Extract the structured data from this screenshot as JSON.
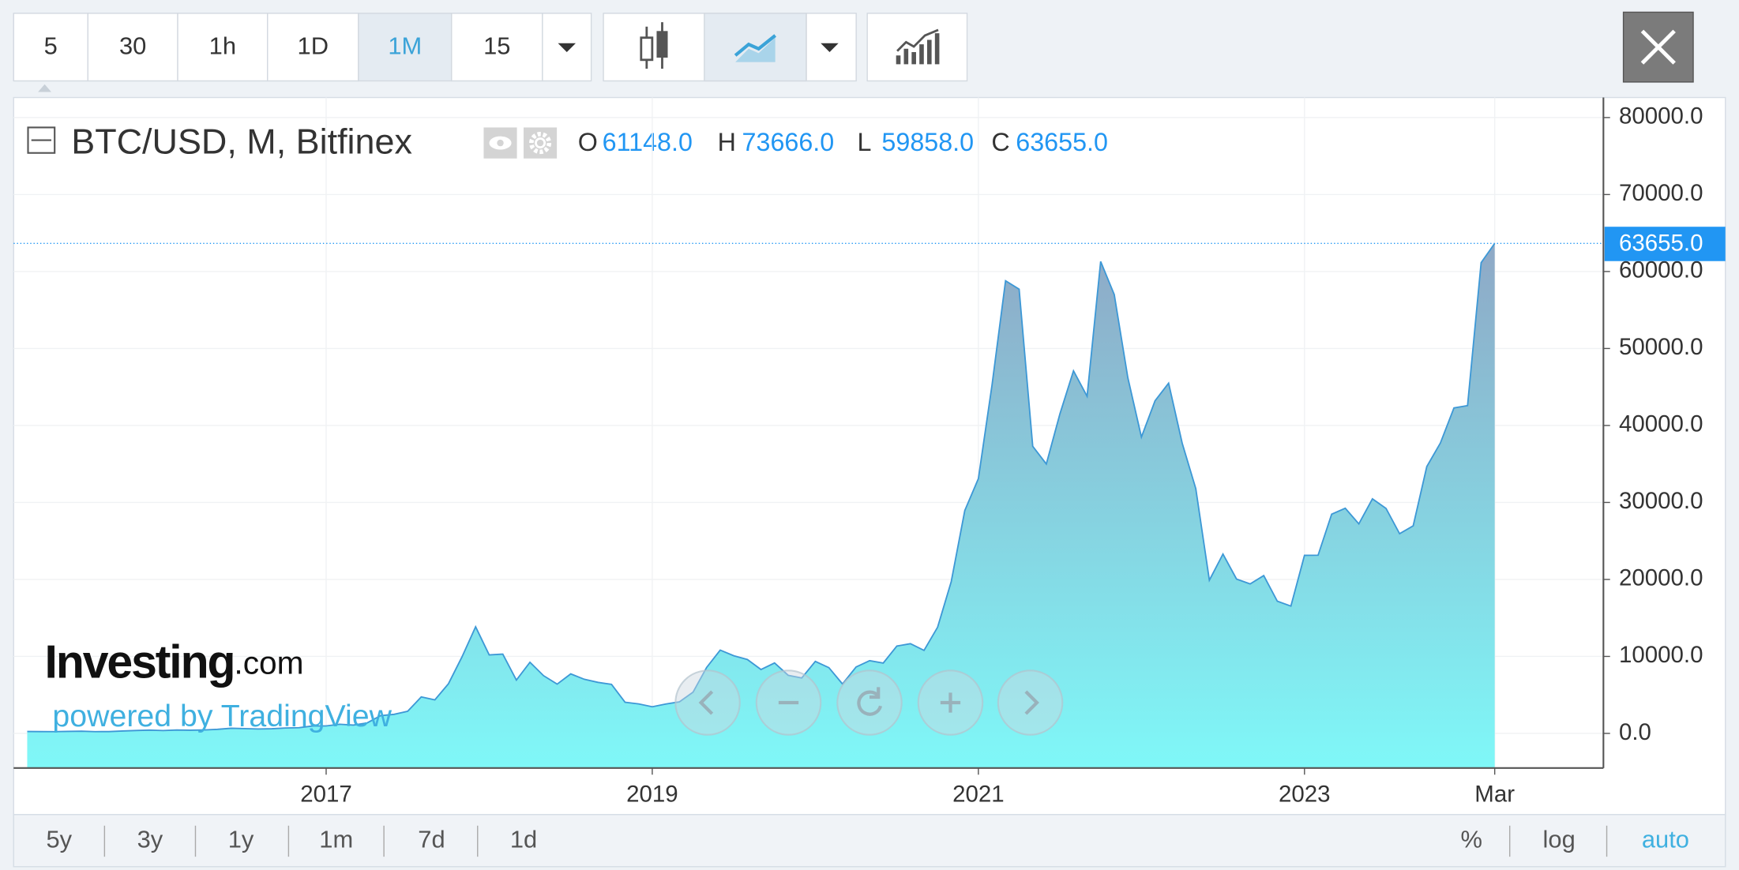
{
  "toolbar": {
    "intervals": [
      "5",
      "30",
      "1h",
      "1D",
      "1M",
      "15"
    ],
    "active_index": 4
  },
  "footer": {
    "ranges": [
      "5y",
      "3y",
      "1y",
      "1m",
      "7d",
      "1d"
    ],
    "options": [
      "%",
      "log",
      "auto"
    ],
    "active_option": 2
  },
  "watermark": {
    "brand": "Investing",
    "suffix": ".com",
    "tagline": "powered by TradingView"
  },
  "chart_data": {
    "type": "area",
    "title": "BTC/USD, M, Bitfinex",
    "ohlc": [
      {
        "name": "O",
        "value": 61148,
        "label": "61148.0"
      },
      {
        "name": "H",
        "value": 73666,
        "label": "73666.0"
      },
      {
        "name": "L",
        "value": 59858,
        "label": "59858.0"
      },
      {
        "name": "C",
        "value": 63655,
        "label": "63655.0"
      }
    ],
    "last_price": {
      "value": 63655,
      "label": "63655.0"
    },
    "color": "#3d98d6",
    "area_colors": [
      "#8eaac7",
      "#7ff8f8"
    ],
    "x": [
      "2015-03",
      "2015-04",
      "2015-05",
      "2015-06",
      "2015-07",
      "2015-08",
      "2015-09",
      "2015-10",
      "2015-11",
      "2015-12",
      "2016-01",
      "2016-02",
      "2016-03",
      "2016-04",
      "2016-05",
      "2016-06",
      "2016-07",
      "2016-08",
      "2016-09",
      "2016-10",
      "2016-11",
      "2016-12",
      "2017-01",
      "2017-02",
      "2017-03",
      "2017-04",
      "2017-05",
      "2017-06",
      "2017-07",
      "2017-08",
      "2017-09",
      "2017-10",
      "2017-11",
      "2017-12",
      "2018-01",
      "2018-02",
      "2018-03",
      "2018-04",
      "2018-05",
      "2018-06",
      "2018-07",
      "2018-08",
      "2018-09",
      "2018-10",
      "2018-11",
      "2018-12",
      "2019-01",
      "2019-02",
      "2019-03",
      "2019-04",
      "2019-05",
      "2019-06",
      "2019-07",
      "2019-08",
      "2019-09",
      "2019-10",
      "2019-11",
      "2019-12",
      "2020-01",
      "2020-02",
      "2020-03",
      "2020-04",
      "2020-05",
      "2020-06",
      "2020-07",
      "2020-08",
      "2020-09",
      "2020-10",
      "2020-11",
      "2020-12",
      "2021-01",
      "2021-02",
      "2021-03",
      "2021-04",
      "2021-05",
      "2021-06",
      "2021-07",
      "2021-08",
      "2021-09",
      "2021-10",
      "2021-11",
      "2021-12",
      "2022-01",
      "2022-02",
      "2022-03",
      "2022-04",
      "2022-05",
      "2022-06",
      "2022-07",
      "2022-08",
      "2022-09",
      "2022-10",
      "2022-11",
      "2022-12",
      "2023-01",
      "2023-02",
      "2023-03",
      "2023-04",
      "2023-05",
      "2023-06",
      "2023-07",
      "2023-08",
      "2023-09",
      "2023-10",
      "2023-11",
      "2023-12",
      "2024-01",
      "2024-02",
      "2024-03"
    ],
    "values": [
      244,
      236,
      230,
      263,
      284,
      230,
      236,
      314,
      377,
      430,
      368,
      437,
      416,
      448,
      531,
      673,
      624,
      575,
      609,
      700,
      742,
      963,
      970,
      1190,
      1080,
      1348,
      2300,
      2480,
      2875,
      4735,
      4360,
      6450,
      9950,
      13850,
      10200,
      10300,
      6930,
      9240,
      7500,
      6400,
      7730,
      7030,
      6630,
      6370,
      4040,
      3830,
      3460,
      3820,
      4100,
      5350,
      8560,
      10820,
      10090,
      9600,
      8300,
      9150,
      7550,
      7200,
      9350,
      8540,
      6420,
      8630,
      9450,
      9140,
      11350,
      11650,
      10780,
      13800,
      19700,
      28950,
      33100,
      45200,
      58800,
      57700,
      37300,
      35000,
      41500,
      47100,
      43800,
      61300,
      57000,
      46200,
      38500,
      43200,
      45500,
      37700,
      31800,
      19900,
      23300,
      20050,
      19420,
      20500,
      17170,
      16540,
      23130,
      23150,
      28480,
      29250,
      27220,
      30470,
      29230,
      25940,
      26970,
      34660,
      37720,
      42280,
      42580,
      61148,
      63655
    ],
    "xlim": [
      "2015-02",
      "2024-11"
    ],
    "xticks": [
      {
        "value": "2017-01",
        "label": "2017"
      },
      {
        "value": "2019-01",
        "label": "2019"
      },
      {
        "value": "2021-01",
        "label": "2021"
      },
      {
        "value": "2023-01",
        "label": "2023"
      },
      {
        "value": "2024-03",
        "label": "Mar"
      }
    ],
    "ylim": [
      -4500,
      82600
    ],
    "yticks": [
      {
        "value": 0,
        "label": "0.0"
      },
      {
        "value": 10000,
        "label": "10000.0"
      },
      {
        "value": 20000,
        "label": "20000.0"
      },
      {
        "value": 30000,
        "label": "30000.0"
      },
      {
        "value": 40000,
        "label": "40000.0"
      },
      {
        "value": 50000,
        "label": "50000.0"
      },
      {
        "value": 60000,
        "label": "60000.0"
      },
      {
        "value": 70000,
        "label": "70000.0"
      },
      {
        "value": 80000,
        "label": "80000.0"
      }
    ],
    "grid": true
  }
}
